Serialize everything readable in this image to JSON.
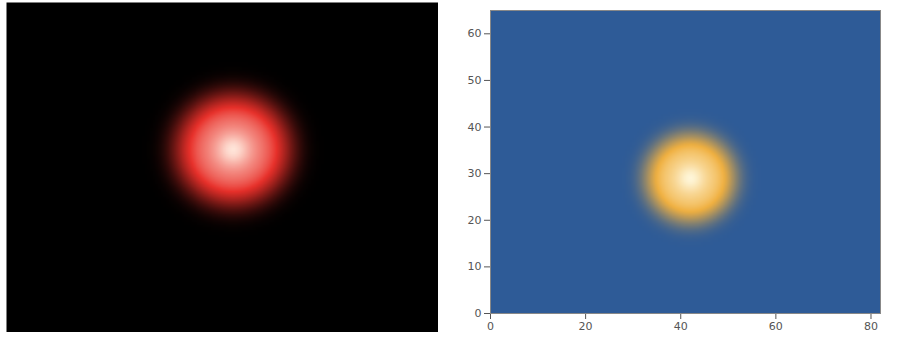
{
  "chart_data": [
    {
      "type": "image",
      "tick_labels": false,
      "xlim": [
        0,
        82
      ],
      "ylim": [
        0,
        65
      ],
      "spot": {
        "x": 43,
        "y": 36,
        "radius": 11
      },
      "colors": [
        "#000000",
        "#e8302a",
        "#ffe4d8"
      ]
    },
    {
      "type": "heatmap",
      "xlim": [
        0,
        82
      ],
      "ylim": [
        0,
        65
      ],
      "xticks": [
        0,
        20,
        40,
        60,
        80
      ],
      "yticks": [
        0,
        10,
        20,
        30,
        40,
        50,
        60
      ],
      "spot": {
        "x": 42,
        "y": 29,
        "radius": 9.5
      },
      "colors": [
        "#2e5b97",
        "#f0b040",
        "#fff6d8"
      ]
    }
  ]
}
